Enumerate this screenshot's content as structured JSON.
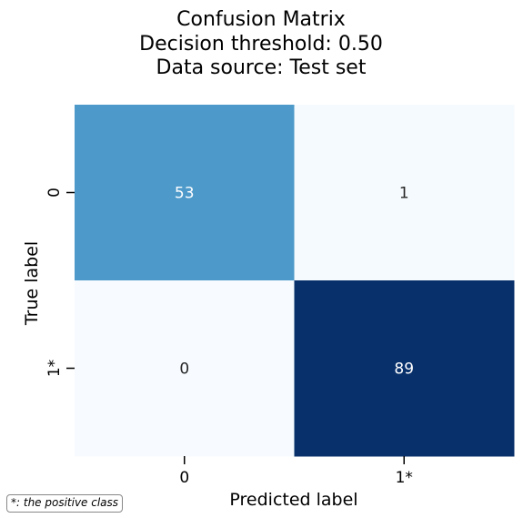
{
  "chart_data": {
    "type": "heatmap",
    "title_lines": [
      "Confusion Matrix",
      "Decision threshold: 0.50",
      "Data source: Test set"
    ],
    "xlabel": "Predicted label",
    "ylabel": "True label",
    "x_categories": [
      "0",
      "1*"
    ],
    "y_categories": [
      "0",
      "1*"
    ],
    "values": [
      [
        53,
        1
      ],
      [
        0,
        89
      ]
    ],
    "colormap": "Blues",
    "value_range": [
      0,
      89
    ],
    "colorbar": false,
    "grid": false
  },
  "footnote": "*: the positive class"
}
